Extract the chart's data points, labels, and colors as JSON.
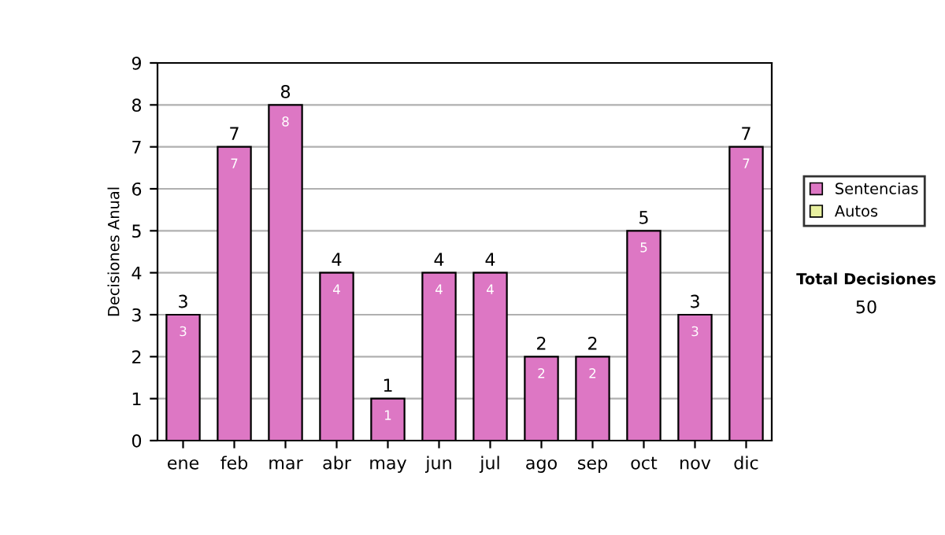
{
  "chart_data": {
    "type": "bar",
    "stacked": true,
    "ylabel": "Decisiones Anual",
    "categories": [
      "ene",
      "feb",
      "mar",
      "abr",
      "may",
      "jun",
      "jul",
      "ago",
      "sep",
      "oct",
      "nov",
      "dic"
    ],
    "series": [
      {
        "name": "Sentencias",
        "color": "#dd77c4",
        "values": [
          3,
          7,
          8,
          4,
          1,
          4,
          4,
          2,
          2,
          5,
          3,
          7
        ],
        "value_labels": [
          "3",
          "7",
          "8",
          "4",
          "1",
          "4",
          "4",
          "2",
          "2",
          "5",
          "3",
          "7"
        ]
      },
      {
        "name": "Autos",
        "color": "#e8f0a0",
        "values": [
          0,
          0,
          0,
          0,
          0,
          0,
          0,
          0,
          0,
          0,
          0,
          0
        ]
      }
    ],
    "totals": [
      "3",
      "7",
      "8",
      "4",
      "1",
      "4",
      "4",
      "2",
      "2",
      "5",
      "3",
      "7"
    ],
    "ylim": [
      0,
      9
    ],
    "yticks": [
      0,
      1,
      2,
      3,
      4,
      5,
      6,
      7,
      8,
      9
    ],
    "grid": "y",
    "legend": "right",
    "annotations": [
      "Total Decisiones",
      "50"
    ]
  }
}
